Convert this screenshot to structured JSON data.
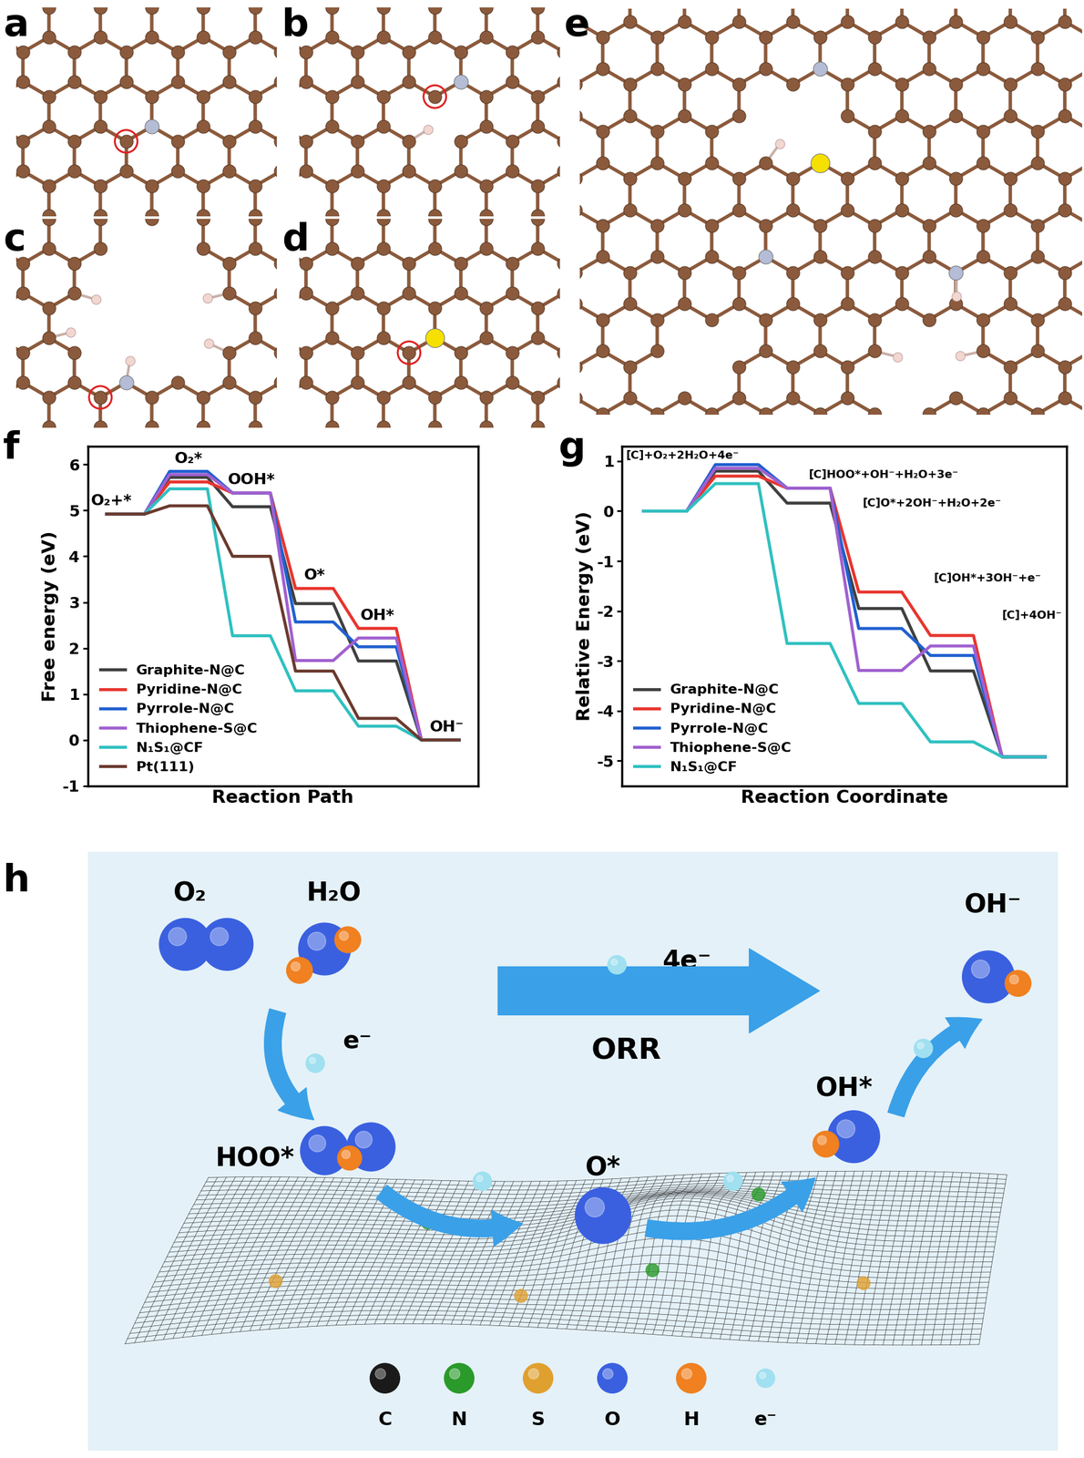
{
  "panel_labels": [
    "a",
    "b",
    "c",
    "d",
    "e",
    "f",
    "g",
    "h"
  ],
  "chart_data": [
    {
      "type": "line",
      "ylabel": "Free energy (eV)",
      "xlabel": "Reaction Path",
      "categories": [
        "O₂+*",
        "O₂*",
        "OOH*",
        "O*",
        "OH*",
        "OH⁻"
      ],
      "series": [
        {
          "name": "Graphite-N@C",
          "color": "#404040",
          "values": [
            4.92,
            5.72,
            5.08,
            2.97,
            1.72,
            0
          ]
        },
        {
          "name": "Pyridine-N@C",
          "color": "#e8352e",
          "values": [
            4.92,
            5.62,
            5.38,
            3.3,
            2.43,
            0
          ]
        },
        {
          "name": "Pyrrole-N@C",
          "color": "#2060d0",
          "values": [
            4.92,
            5.85,
            5.38,
            2.57,
            2.03,
            0
          ]
        },
        {
          "name": "Thiophene-S@C",
          "color": "#a060d0",
          "values": [
            4.92,
            5.78,
            5.38,
            1.73,
            2.22,
            0
          ]
        },
        {
          "name": "N₁S₁@CF",
          "color": "#30c0c0",
          "values": [
            4.92,
            5.47,
            2.27,
            1.07,
            0.3,
            0
          ]
        },
        {
          "name": "Pt(111)",
          "color": "#6b3a2e",
          "values": [
            4.92,
            5.1,
            4.0,
            1.5,
            0.47,
            0
          ]
        }
      ],
      "ylim": [
        -1,
        6.4
      ],
      "yticks": [
        -1,
        0,
        1,
        2,
        3,
        4,
        5,
        6
      ],
      "tick_labels": "y",
      "legend": "lower left"
    },
    {
      "type": "line",
      "ylabel": "Relative Energy (eV)",
      "xlabel": "Reaction Coordinate",
      "categories": [
        "[C]+O₂+2H₂O+4e⁻",
        null,
        "[C]HOO*+OH⁻+H₂O+3e⁻",
        "[C]O*+2OH⁻+H₂O+2e⁻",
        "[C]OH*+3OH⁻+e⁻",
        "[C]+4OH⁻"
      ],
      "series": [
        {
          "name": "Graphite-N@C",
          "color": "#404040",
          "values": [
            0,
            0.8,
            0.16,
            -1.95,
            -3.2,
            -4.92
          ]
        },
        {
          "name": "Pyridine-N@C",
          "color": "#e8352e",
          "values": [
            0,
            0.7,
            0.46,
            -1.62,
            -2.49,
            -4.92
          ]
        },
        {
          "name": "Pyrrole-N@C",
          "color": "#2060d0",
          "values": [
            0,
            0.93,
            0.46,
            -2.35,
            -2.89,
            -4.92
          ]
        },
        {
          "name": "Thiophene-S@C",
          "color": "#a060d0",
          "values": [
            0,
            0.86,
            0.46,
            -3.19,
            -2.7,
            -4.92
          ]
        },
        {
          "name": "N₁S₁@CF",
          "color": "#30c0c0",
          "values": [
            0,
            0.55,
            -2.65,
            -3.85,
            -4.62,
            -4.92
          ]
        }
      ],
      "ylim": [
        -5.5,
        1.3
      ],
      "yticks": [
        -5,
        -4,
        -3,
        -2,
        -1,
        0,
        1
      ],
      "tick_labels": "y",
      "legend": "lower left"
    }
  ],
  "scheme": {
    "title": "ORR",
    "reactants": [
      "O₂",
      "H₂O"
    ],
    "product": "OH⁻",
    "overall_electrons": "4e⁻",
    "step_electron": "e⁻",
    "intermediates": [
      "HOO*",
      "O*",
      "OH*"
    ],
    "key": [
      {
        "label": "C",
        "color": "#1a1a1a"
      },
      {
        "label": "N",
        "color": "#2a9a2a"
      },
      {
        "label": "S",
        "color": "#e0a030"
      },
      {
        "label": "O",
        "color": "#3a60e0"
      },
      {
        "label": "H",
        "color": "#f08020"
      },
      {
        "label": "e⁻",
        "color": "#a0e0f0"
      }
    ]
  }
}
